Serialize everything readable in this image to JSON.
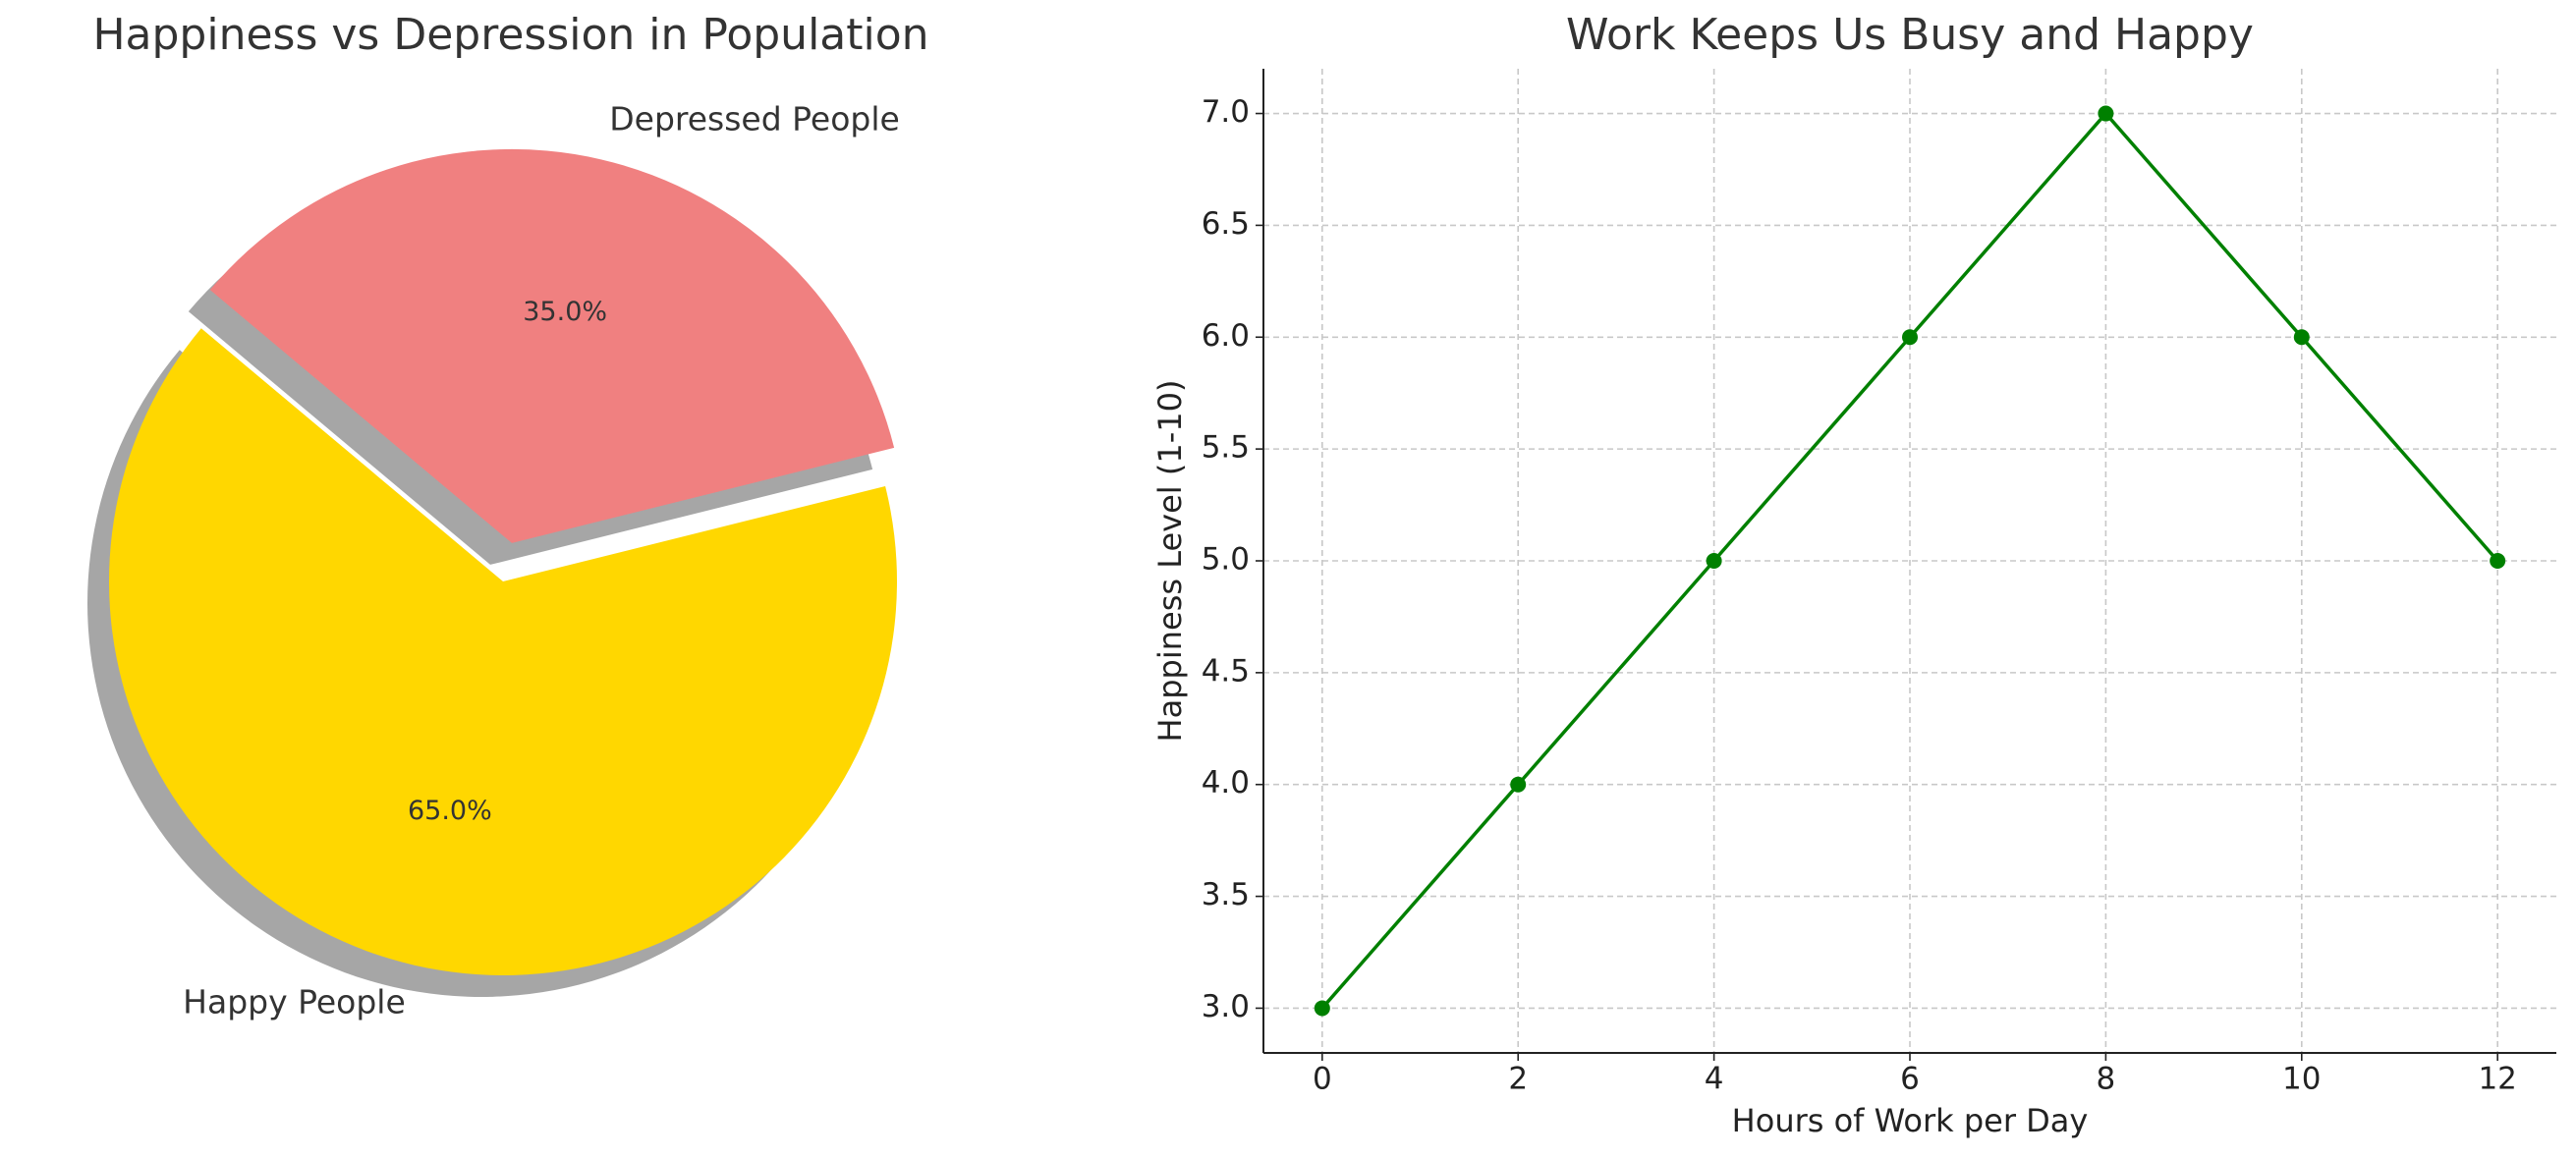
{
  "chart_data": [
    {
      "type": "pie",
      "title": "Happiness vs Depression in Population",
      "categories": [
        "Happy People",
        "Depressed People"
      ],
      "values": [
        65,
        35
      ],
      "value_labels": [
        "65.0%",
        "35.0%"
      ],
      "colors": [
        "#ffd700",
        "#f08080"
      ],
      "explode": [
        0,
        0.1
      ],
      "startangle": 140,
      "shadow": true
    },
    {
      "type": "line",
      "title": "Work Keeps Us Busy and Happy",
      "x_label": "Hours of Work per Day",
      "y_label": "Happiness Level (1-10)",
      "x": [
        0,
        2,
        4,
        6,
        8,
        10,
        12
      ],
      "series": [
        {
          "color": "#008000",
          "values": [
            3,
            4,
            5,
            6,
            7,
            6,
            5
          ]
        }
      ],
      "xlim": [
        -0.6,
        12.6
      ],
      "xticks": [
        0,
        2,
        4,
        6,
        8,
        10,
        12
      ],
      "ylim": [
        2.8,
        7.2
      ],
      "yticks": [
        {
          "value": 3,
          "label": "3.0"
        },
        {
          "value": 3.5,
          "label": "3.5"
        },
        {
          "value": 4,
          "label": "4.0"
        },
        {
          "value": 4.5,
          "label": "4.5"
        },
        {
          "value": 5,
          "label": "5.0"
        },
        {
          "value": 5.5,
          "label": "5.5"
        },
        {
          "value": 6,
          "label": "6.0"
        },
        {
          "value": 6.5,
          "label": "6.5"
        },
        {
          "value": 7,
          "label": "7.0"
        }
      ],
      "grid": true
    }
  ]
}
